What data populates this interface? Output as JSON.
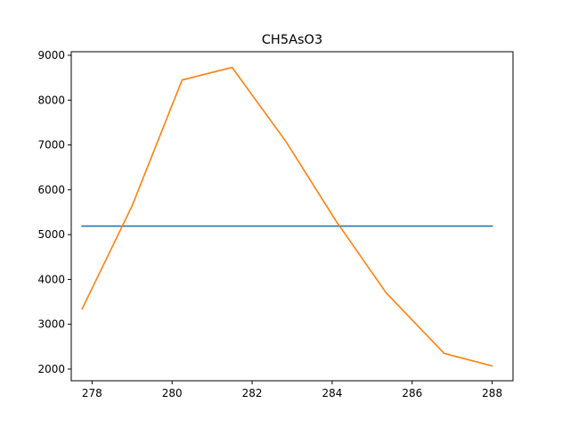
{
  "chart_data": {
    "type": "line",
    "title": "CH5AsO3",
    "xlabel": "",
    "ylabel": "",
    "xlim": [
      277.48,
      288.52
    ],
    "ylim": [
      1740,
      9080
    ],
    "xticks": [
      278,
      280,
      282,
      284,
      286,
      288
    ],
    "yticks": [
      2000,
      3000,
      4000,
      5000,
      6000,
      7000,
      8000,
      9000
    ],
    "grid": false,
    "legend": "none",
    "series": [
      {
        "color": "#1f77b4",
        "x": [
          277.75,
          288.0
        ],
        "y": [
          5190,
          5190
        ]
      },
      {
        "color": "#ff7f0e",
        "x": [
          277.75,
          279.0,
          280.25,
          281.5,
          282.85,
          284.1,
          285.35,
          286.8,
          288.0
        ],
        "y": [
          3340,
          5640,
          8450,
          8730,
          7070,
          5300,
          3700,
          2350,
          2070
        ]
      }
    ]
  }
}
